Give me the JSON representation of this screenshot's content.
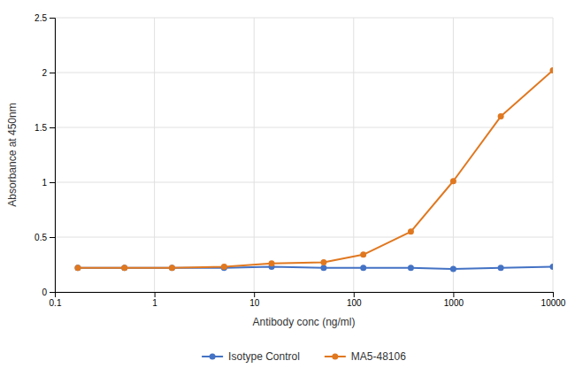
{
  "chart_data": {
    "type": "line",
    "xlabel": "Antibody conc (ng/ml)",
    "ylabel": "Absorbance at 450nm",
    "x": [
      0.17,
      0.5,
      1.5,
      5,
      15,
      50,
      125,
      375,
      1000,
      3000,
      10000
    ],
    "series": [
      {
        "name": "Isotype Control",
        "color": "#4472c4",
        "marker": "circle",
        "values": [
          0.22,
          0.22,
          0.22,
          0.22,
          0.23,
          0.22,
          0.22,
          0.22,
          0.21,
          0.22,
          0.23
        ]
      },
      {
        "name": "MA5-48106",
        "color": "#e07820",
        "marker": "circle",
        "values": [
          0.22,
          0.22,
          0.22,
          0.23,
          0.26,
          0.27,
          0.34,
          0.55,
          1.01,
          1.6,
          2.02
        ]
      }
    ],
    "xlim": [
      0.1,
      10000
    ],
    "ylim": [
      0,
      2.5
    ],
    "xticks": [
      0.1,
      1,
      10,
      100,
      1000,
      10000
    ],
    "yticks": [
      0,
      0.5,
      1,
      1.5,
      2,
      2.5
    ],
    "log": "x",
    "grid": true,
    "legend": "bottom"
  }
}
